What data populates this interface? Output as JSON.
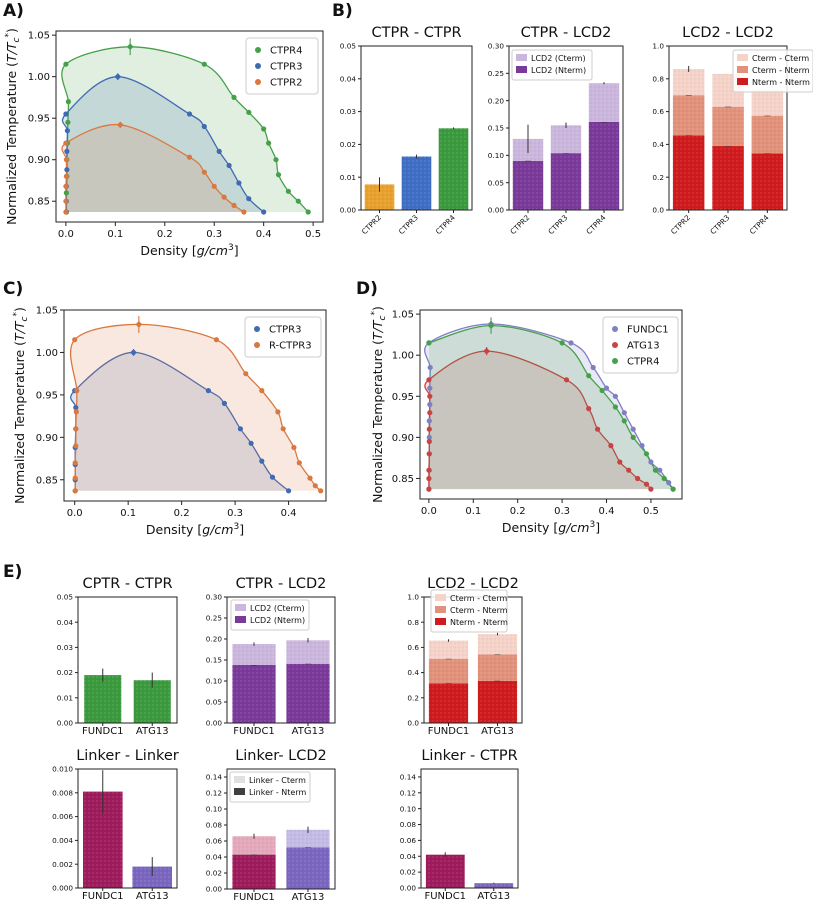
{
  "figure": {
    "panel_labels": [
      "A)",
      "B)",
      "C)",
      "D)",
      "E)"
    ],
    "colors": {
      "CTPR2": "#d9783f",
      "CTPR3": "#3f6bb3",
      "CTPR4": "#46a04a",
      "R-CTPR3": "#d9783f",
      "FUNDC1": "#7f7fc4",
      "ATG13": "#c84343",
      "bar_ctpr2": "#e8a12d",
      "bar_ctpr3": "#3f6ec4",
      "bar_ctpr4": "#3c9a3e",
      "lcd_light": "#cbb7dd",
      "lcd_dark": "#7a3a9a",
      "cterm_cterm": "#f5d3c9",
      "cterm_nterm": "#e2927a",
      "nterm_nterm": "#cf1b1e",
      "bar_green": "#3c9a3e",
      "fundc1_bar": "#9e1c5c",
      "atg13_bar": "#7a66be",
      "linker_light": "#e0e0e0",
      "linker_dark": "#404040"
    }
  },
  "chart_data": [
    {
      "id": "A",
      "type": "scatter",
      "xlabel": "Density [g/cm³]",
      "ylabel": "Normalized Temperature (T/T*c)",
      "xlim": [
        -0.02,
        0.52
      ],
      "ylim": [
        0.825,
        1.055
      ],
      "xticks": [
        "0.0",
        "0.1",
        "0.2",
        "0.3",
        "0.4",
        "0.5"
      ],
      "yticks": [
        "0.85",
        "0.90",
        "0.95",
        "1.00",
        "1.05"
      ],
      "legend": [
        "CTPR4",
        "CTPR3",
        "CTPR2"
      ],
      "series": [
        {
          "name": "CTPR4",
          "critical": [
            0.13,
            1.036
          ],
          "critical_err": 0.01,
          "points": [
            [
              0.0,
              1.015
            ],
            [
              0.005,
              0.97
            ],
            [
              0.004,
              0.945
            ],
            [
              0.003,
              0.92
            ],
            [
              0.002,
              0.9
            ],
            [
              0.002,
              0.88
            ],
            [
              0.001,
              0.86
            ],
            [
              0.001,
              0.837
            ],
            [
              0.28,
              1.015
            ],
            [
              0.34,
              0.975
            ],
            [
              0.37,
              0.957
            ],
            [
              0.4,
              0.937
            ],
            [
              0.41,
              0.92
            ],
            [
              0.425,
              0.9
            ],
            [
              0.43,
              0.882
            ],
            [
              0.45,
              0.862
            ],
            [
              0.47,
              0.85
            ],
            [
              0.49,
              0.837
            ]
          ]
        },
        {
          "name": "CTPR3",
          "critical": [
            0.105,
            1.0
          ],
          "critical_err": 0.004,
          "points": [
            [
              0.0,
              0.955
            ],
            [
              0.003,
              0.935
            ],
            [
              0.002,
              0.91
            ],
            [
              0.002,
              0.888
            ],
            [
              0.001,
              0.868
            ],
            [
              0.001,
              0.85
            ],
            [
              0.001,
              0.837
            ],
            [
              0.25,
              0.955
            ],
            [
              0.28,
              0.94
            ],
            [
              0.31,
              0.91
            ],
            [
              0.33,
              0.893
            ],
            [
              0.35,
              0.872
            ],
            [
              0.37,
              0.853
            ],
            [
              0.4,
              0.837
            ]
          ]
        },
        {
          "name": "CTPR2",
          "critical": [
            0.11,
            0.942
          ],
          "critical_err": 0.002,
          "points": [
            [
              0.0,
              0.92
            ],
            [
              0.001,
              0.9
            ],
            [
              0.001,
              0.88
            ],
            [
              0.0,
              0.868
            ],
            [
              0.0,
              0.85
            ],
            [
              0.0,
              0.837
            ],
            [
              0.25,
              0.903
            ],
            [
              0.28,
              0.885
            ],
            [
              0.3,
              0.868
            ],
            [
              0.32,
              0.855
            ],
            [
              0.34,
              0.845
            ],
            [
              0.36,
              0.837
            ]
          ]
        }
      ]
    },
    {
      "id": "B1",
      "type": "bar",
      "title": "CTPR - CTPR",
      "categories": [
        "CTPR2",
        "CTPR3",
        "CTPR4"
      ],
      "values": [
        0.0078,
        0.0163,
        0.0249
      ],
      "errors": [
        0.0022,
        0.0006,
        0.0003
      ],
      "ylim": [
        0,
        0.05
      ],
      "yticks": [
        "0.00",
        "0.01",
        "0.02",
        "0.03",
        "0.04",
        "0.05"
      ]
    },
    {
      "id": "B2",
      "type": "bar",
      "stacked": true,
      "title": "CTPR - LCD2",
      "categories": [
        "CTPR2",
        "CTPR3",
        "CTPR4"
      ],
      "series": [
        {
          "name": "LCD2 (Nterm)",
          "values": [
            0.09,
            0.104,
            0.161
          ]
        },
        {
          "name": "LCD2 (Cterm)",
          "values": [
            0.04,
            0.051,
            0.071
          ]
        }
      ],
      "errors": [
        0.026,
        0.005,
        0.002
      ],
      "ylim": [
        0,
        0.3
      ],
      "yticks": [
        "0.00",
        "0.05",
        "0.10",
        "0.15",
        "0.20",
        "0.25",
        "0.30"
      ],
      "legend": [
        "LCD2 (Cterm)",
        "LCD2 (Nterm)"
      ]
    },
    {
      "id": "B3",
      "type": "bar",
      "stacked": true,
      "title": "LCD2 - LCD2",
      "categories": [
        "CTPR2",
        "CTPR3",
        "CTPR4"
      ],
      "series": [
        {
          "name": "Nterm - Nterm",
          "values": [
            0.455,
            0.39,
            0.345
          ]
        },
        {
          "name": "Cterm - Nterm",
          "values": [
            0.245,
            0.24,
            0.23
          ]
        },
        {
          "name": "Cterm - Cterm",
          "values": [
            0.16,
            0.2,
            0.16
          ]
        }
      ],
      "errors": [
        0.018,
        0.0,
        0.0
      ],
      "ylim": [
        0,
        1.0
      ],
      "yticks": [
        "0.0",
        "0.2",
        "0.4",
        "0.6",
        "0.8",
        "1.0"
      ],
      "legend": [
        "Cterm - Cterm",
        "Cterm - Nterm",
        "Nterm - Nterm"
      ]
    },
    {
      "id": "C",
      "type": "scatter",
      "xlabel": "Density [g/cm³]",
      "ylabel": "Normalized Temperature (T/T*c)",
      "xlim": [
        -0.02,
        0.47
      ],
      "ylim": [
        0.825,
        1.05
      ],
      "xticks": [
        "0.0",
        "0.1",
        "0.2",
        "0.3",
        "0.4"
      ],
      "yticks": [
        "0.85",
        "0.90",
        "0.95",
        "1.00",
        "1.05"
      ],
      "legend": [
        "CTPR3",
        "R-CTPR3"
      ],
      "series": [
        {
          "name": "CTPR3",
          "critical": [
            0.11,
            1.0
          ],
          "critical_err": 0.004,
          "points": [
            [
              0.0,
              0.955
            ],
            [
              0.002,
              0.935
            ],
            [
              0.002,
              0.91
            ],
            [
              0.001,
              0.888
            ],
            [
              0.001,
              0.868
            ],
            [
              0.001,
              0.85
            ],
            [
              0.001,
              0.837
            ],
            [
              0.25,
              0.955
            ],
            [
              0.28,
              0.94
            ],
            [
              0.31,
              0.91
            ],
            [
              0.33,
              0.893
            ],
            [
              0.35,
              0.872
            ],
            [
              0.37,
              0.853
            ],
            [
              0.4,
              0.837
            ]
          ]
        },
        {
          "name": "R-CTPR3",
          "critical": [
            0.12,
            1.033
          ],
          "critical_err": 0.01,
          "points": [
            [
              0.0,
              1.015
            ],
            [
              0.004,
              0.955
            ],
            [
              0.003,
              0.93
            ],
            [
              0.002,
              0.91
            ],
            [
              0.002,
              0.89
            ],
            [
              0.001,
              0.87
            ],
            [
              0.001,
              0.852
            ],
            [
              0.001,
              0.837
            ],
            [
              0.265,
              1.015
            ],
            [
              0.32,
              0.975
            ],
            [
              0.35,
              0.955
            ],
            [
              0.38,
              0.93
            ],
            [
              0.39,
              0.91
            ],
            [
              0.41,
              0.888
            ],
            [
              0.42,
              0.87
            ],
            [
              0.44,
              0.852
            ],
            [
              0.45,
              0.843
            ],
            [
              0.46,
              0.837
            ]
          ]
        }
      ]
    },
    {
      "id": "D",
      "type": "scatter",
      "xlabel": "Density [g/cm³]",
      "ylabel": "Normalized Temperature (T/T*c)",
      "xlim": [
        -0.02,
        0.57
      ],
      "ylim": [
        0.825,
        1.055
      ],
      "xticks": [
        "0.0",
        "0.1",
        "0.2",
        "0.3",
        "0.4",
        "0.5"
      ],
      "yticks": [
        "0.85",
        "0.90",
        "0.95",
        "1.00",
        "1.05"
      ],
      "legend": [
        "FUNDC1",
        "ATG13",
        "CTPR4"
      ],
      "series": [
        {
          "name": "FUNDC1",
          "critical": [
            0.14,
            1.038
          ],
          "critical_err": 0.004,
          "points": [
            [
              0.0,
              1.015
            ],
            [
              0.003,
              0.985
            ],
            [
              0.002,
              0.96
            ],
            [
              0.002,
              0.94
            ],
            [
              0.001,
              0.92
            ],
            [
              0.001,
              0.9
            ],
            [
              0.001,
              0.88
            ],
            [
              0.001,
              0.86
            ],
            [
              0.0,
              0.837
            ],
            [
              0.32,
              1.015
            ],
            [
              0.37,
              0.985
            ],
            [
              0.4,
              0.96
            ],
            [
              0.42,
              0.95
            ],
            [
              0.44,
              0.93
            ],
            [
              0.46,
              0.91
            ],
            [
              0.48,
              0.89
            ],
            [
              0.5,
              0.87
            ],
            [
              0.52,
              0.86
            ],
            [
              0.54,
              0.845
            ],
            [
              0.55,
              0.837
            ]
          ]
        },
        {
          "name": "ATG13",
          "critical": [
            0.13,
            1.005
          ],
          "critical_err": 0.005,
          "points": [
            [
              0.0,
              0.97
            ],
            [
              0.002,
              0.95
            ],
            [
              0.002,
              0.93
            ],
            [
              0.001,
              0.91
            ],
            [
              0.001,
              0.895
            ],
            [
              0.001,
              0.88
            ],
            [
              0.0,
              0.86
            ],
            [
              0.0,
              0.85
            ],
            [
              0.0,
              0.837
            ],
            [
              0.31,
              0.97
            ],
            [
              0.36,
              0.935
            ],
            [
              0.38,
              0.91
            ],
            [
              0.41,
              0.89
            ],
            [
              0.43,
              0.87
            ],
            [
              0.45,
              0.86
            ],
            [
              0.47,
              0.85
            ],
            [
              0.49,
              0.843
            ],
            [
              0.5,
              0.837
            ]
          ]
        },
        {
          "name": "CTPR4",
          "critical": [
            0.14,
            1.036
          ],
          "critical_err": 0.01,
          "points": [
            [
              0.0,
              1.015
            ],
            [
              0.3,
              1.015
            ],
            [
              0.36,
              0.975
            ],
            [
              0.39,
              0.957
            ],
            [
              0.42,
              0.937
            ],
            [
              0.44,
              0.92
            ],
            [
              0.46,
              0.9
            ],
            [
              0.49,
              0.88
            ],
            [
              0.51,
              0.86
            ],
            [
              0.53,
              0.85
            ],
            [
              0.55,
              0.837
            ]
          ]
        }
      ]
    },
    {
      "id": "E1",
      "type": "bar",
      "title": "CPTR - CTPR",
      "categories": [
        "FUNDC1",
        "ATG13"
      ],
      "values": [
        0.019,
        0.017
      ],
      "errors": [
        0.0026,
        0.003
      ],
      "ylim": [
        0,
        0.05
      ],
      "yticks": [
        "0.00",
        "0.01",
        "0.02",
        "0.03",
        "0.04",
        "0.05"
      ]
    },
    {
      "id": "E2",
      "type": "bar",
      "stacked": true,
      "title": "CTPR - LCD2",
      "categories": [
        "FUNDC1",
        "ATG13"
      ],
      "series": [
        {
          "name": "LCD2 (Nterm)",
          "values": [
            0.138,
            0.141
          ]
        },
        {
          "name": "LCD2 (Cterm)",
          "values": [
            0.05,
            0.056
          ]
        }
      ],
      "errors": [
        0.004,
        0.005
      ],
      "ylim": [
        0,
        0.3
      ],
      "yticks": [
        "0.00",
        "0.05",
        "0.10",
        "0.15",
        "0.20",
        "0.25",
        "0.30"
      ],
      "legend": [
        "LCD2 (Cterm)",
        "LCD2 (Nterm)"
      ]
    },
    {
      "id": "E3",
      "type": "bar",
      "stacked": true,
      "title": "LCD2 - LCD2",
      "categories": [
        "FUNDC1",
        "ATG13"
      ],
      "series": [
        {
          "name": "Nterm - Nterm",
          "values": [
            0.315,
            0.335
          ]
        },
        {
          "name": "Cterm - Nterm",
          "values": [
            0.195,
            0.21
          ]
        },
        {
          "name": "Cterm - Cterm",
          "values": [
            0.145,
            0.16
          ]
        }
      ],
      "errors": [
        0.01,
        0.01
      ],
      "ylim": [
        0,
        1.0
      ],
      "yticks": [
        "0.0",
        "0.2",
        "0.4",
        "0.6",
        "0.8",
        "1.0"
      ],
      "legend": [
        "Cterm - Cterm",
        "Cterm - Nterm",
        "Nterm - Nterm"
      ]
    },
    {
      "id": "E4",
      "type": "bar",
      "title": "Linker - Linker",
      "categories": [
        "FUNDC1",
        "ATG13"
      ],
      "values": [
        0.0081,
        0.0018
      ],
      "errors": [
        0.0018,
        0.0008
      ],
      "ylim": [
        0,
        0.01
      ],
      "yticks": [
        "0.000",
        "0.002",
        "0.004",
        "0.006",
        "0.008",
        "0.010"
      ]
    },
    {
      "id": "E5",
      "type": "bar",
      "stacked": true,
      "title": "Linker- LCD2",
      "categories": [
        "FUNDC1",
        "ATG13"
      ],
      "series": [
        {
          "name": "Linker - Nterm",
          "values": [
            0.043,
            0.052
          ]
        },
        {
          "name": "Linker - Cterm",
          "values": [
            0.023,
            0.022
          ]
        }
      ],
      "errors": [
        0.003,
        0.004
      ],
      "ylim": [
        0,
        0.15
      ],
      "yticks": [
        "0.00",
        "0.02",
        "0.04",
        "0.06",
        "0.08",
        "0.10",
        "0.12",
        "0.14"
      ],
      "legend": [
        "Linker - Cterm",
        "Linker - Nterm"
      ]
    },
    {
      "id": "E6",
      "type": "bar",
      "title": "Linker - CTPR",
      "categories": [
        "FUNDC1",
        "ATG13"
      ],
      "values": [
        0.042,
        0.006
      ],
      "errors": [
        0.003,
        0.0007
      ],
      "ylim": [
        0,
        0.15
      ],
      "yticks": [
        "0.00",
        "0.02",
        "0.04",
        "0.06",
        "0.08",
        "0.10",
        "0.12",
        "0.14"
      ]
    }
  ]
}
